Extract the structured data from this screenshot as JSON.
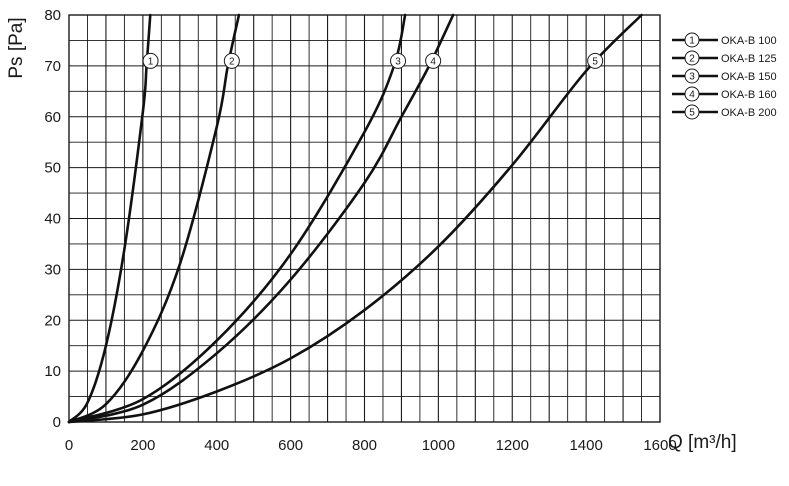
{
  "chart_data": {
    "type": "line",
    "xlabel": "Q [m³/h]",
    "ylabel": "Ps [Pa]",
    "xlim": [
      0,
      1600
    ],
    "ylim": [
      0,
      80
    ],
    "x_ticks": [
      "0",
      "200",
      "400",
      "600",
      "800",
      "1000",
      "1200",
      "1400",
      "1600"
    ],
    "y_ticks": [
      "0",
      "10",
      "20",
      "30",
      "40",
      "50",
      "60",
      "70",
      "80"
    ],
    "grid": true,
    "legend_position": "right",
    "series": [
      {
        "name": "OKA-B 100",
        "marker": "1",
        "x": [
          0,
          50,
          100,
          150,
          200,
          210,
          220
        ],
        "y": [
          0,
          3.8,
          15,
          34,
          61,
          70,
          80
        ]
      },
      {
        "name": "OKA-B 125",
        "marker": "2",
        "x": [
          0,
          100,
          200,
          300,
          400,
          430,
          460
        ],
        "y": [
          0,
          3.5,
          14,
          31,
          58,
          70,
          80
        ]
      },
      {
        "name": "OKA-B 150",
        "marker": "3",
        "x": [
          0,
          200,
          400,
          600,
          800,
          880,
          910
        ],
        "y": [
          0,
          4.5,
          16,
          33,
          57,
          70,
          80
        ]
      },
      {
        "name": "OKA-B 160",
        "marker": "4",
        "x": [
          0,
          200,
          400,
          600,
          800,
          900,
          975,
          1040
        ],
        "y": [
          0,
          3.4,
          13.5,
          28,
          47,
          60,
          70,
          80
        ]
      },
      {
        "name": "OKA-B 200",
        "marker": "5",
        "x": [
          0,
          200,
          400,
          600,
          800,
          1000,
          1200,
          1400,
          1550
        ],
        "y": [
          0,
          1.5,
          6,
          12.5,
          22,
          34.5,
          50.5,
          69,
          80
        ]
      }
    ]
  }
}
